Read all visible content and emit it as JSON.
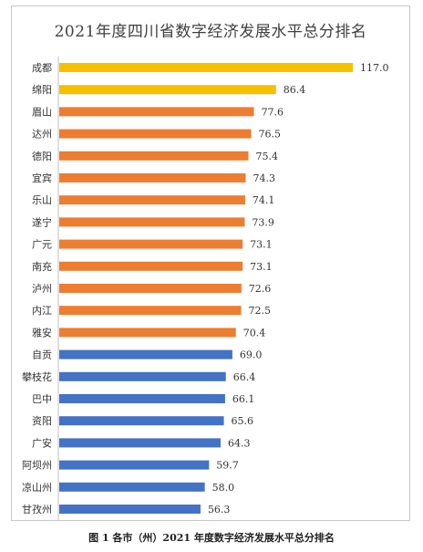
{
  "chart_data": {
    "type": "bar",
    "orientation": "horizontal",
    "title": "2021年度四川省数字经济发展水平总分排名",
    "caption": "图 1 各市（州）2021 年度数字经济发展水平总分排名",
    "categories": [
      "成都",
      "绵阳",
      "眉山",
      "达州",
      "德阳",
      "宜宾",
      "乐山",
      "遂宁",
      "广元",
      "南充",
      "泸州",
      "内江",
      "雅安",
      "自贡",
      "攀枝花",
      "巴中",
      "资阳",
      "广安",
      "阿坝州",
      "凉山州",
      "甘孜州"
    ],
    "values": [
      117.0,
      86.4,
      77.6,
      76.5,
      75.4,
      74.3,
      74.1,
      73.9,
      73.1,
      73.1,
      72.6,
      72.5,
      70.4,
      69.0,
      66.4,
      66.1,
      65.6,
      64.3,
      59.7,
      58.0,
      56.3
    ],
    "value_labels": [
      "117.0",
      "86.4",
      "77.6",
      "76.5",
      "75.4",
      "74.3",
      "74.1",
      "73.9",
      "73.1",
      "73.1",
      "72.6",
      "72.5",
      "70.4",
      "69.0",
      "66.4",
      "66.1",
      "65.6",
      "64.3",
      "59.7",
      "58.0",
      "56.3"
    ],
    "bar_colors": [
      "#F5C000",
      "#F5C000",
      "#ED7D31",
      "#ED7D31",
      "#ED7D31",
      "#ED7D31",
      "#ED7D31",
      "#ED7D31",
      "#ED7D31",
      "#ED7D31",
      "#ED7D31",
      "#ED7D31",
      "#ED7D31",
      "#4472C4",
      "#4472C4",
      "#4472C4",
      "#4472C4",
      "#4472C4",
      "#4472C4",
      "#4472C4",
      "#4472C4"
    ],
    "xlim": [
      0,
      117.0
    ],
    "grid": false,
    "legend": "none",
    "axis_color": "#bfbfbf"
  }
}
